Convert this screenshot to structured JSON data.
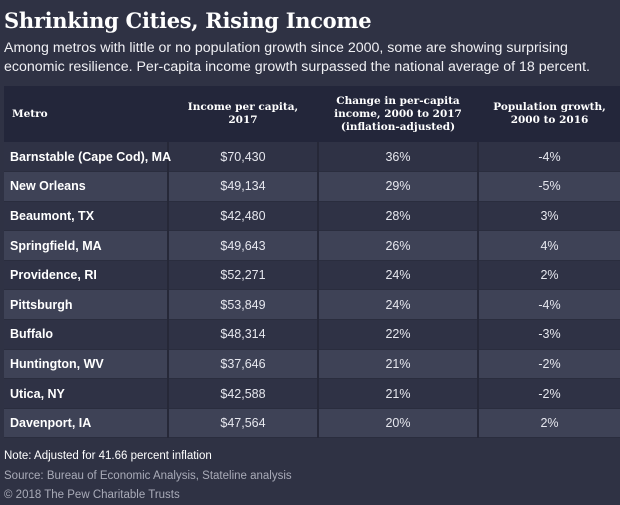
{
  "title": "Shrinking Cities, Rising Income",
  "subtitle": "Among metros with little or no population growth since 2000, some are showing surprising economic resilience. Per-capita income growth surpassed the national average of 18 percent.",
  "table": {
    "headers": [
      "Metro",
      "Income per capita, 2017",
      "Change in per-capita income, 2000 to 2017 (inflation-adjusted)",
      "Population growth, 2000 to 2016"
    ],
    "rows": [
      {
        "metro": "Barnstable (Cape Cod), MA",
        "income": "$70,430",
        "change": "36%",
        "population": "-4%"
      },
      {
        "metro": "New Orleans",
        "income": "$49,134",
        "change": "29%",
        "population": "-5%"
      },
      {
        "metro": "Beaumont, TX",
        "income": "$42,480",
        "change": "28%",
        "population": "3%"
      },
      {
        "metro": "Springfield, MA",
        "income": "$49,643",
        "change": "26%",
        "population": "4%"
      },
      {
        "metro": "Providence, RI",
        "income": "$52,271",
        "change": "24%",
        "population": "2%"
      },
      {
        "metro": "Pittsburgh",
        "income": "$53,849",
        "change": "24%",
        "population": "-4%"
      },
      {
        "metro": "Buffalo",
        "income": "$48,314",
        "change": "22%",
        "population": "-3%"
      },
      {
        "metro": "Huntington, WV",
        "income": "$37,646",
        "change": "21%",
        "population": "-2%"
      },
      {
        "metro": "Utica, NY",
        "income": "$42,588",
        "change": "21%",
        "population": "-2%"
      },
      {
        "metro": "Davenport, IA",
        "income": "$47,564",
        "change": "20%",
        "population": "2%"
      }
    ]
  },
  "footer": {
    "note": "Note: Adjusted for 41.66 percent inflation",
    "source": "Source: Bureau of Economic Analysis, Stateline analysis",
    "copyright": "© 2018 The Pew Charitable Trusts"
  },
  "colors": {
    "background": "#2f3244",
    "header_background": "#23263a",
    "row_dark": "#2f3245",
    "row_light": "#3e4256"
  }
}
